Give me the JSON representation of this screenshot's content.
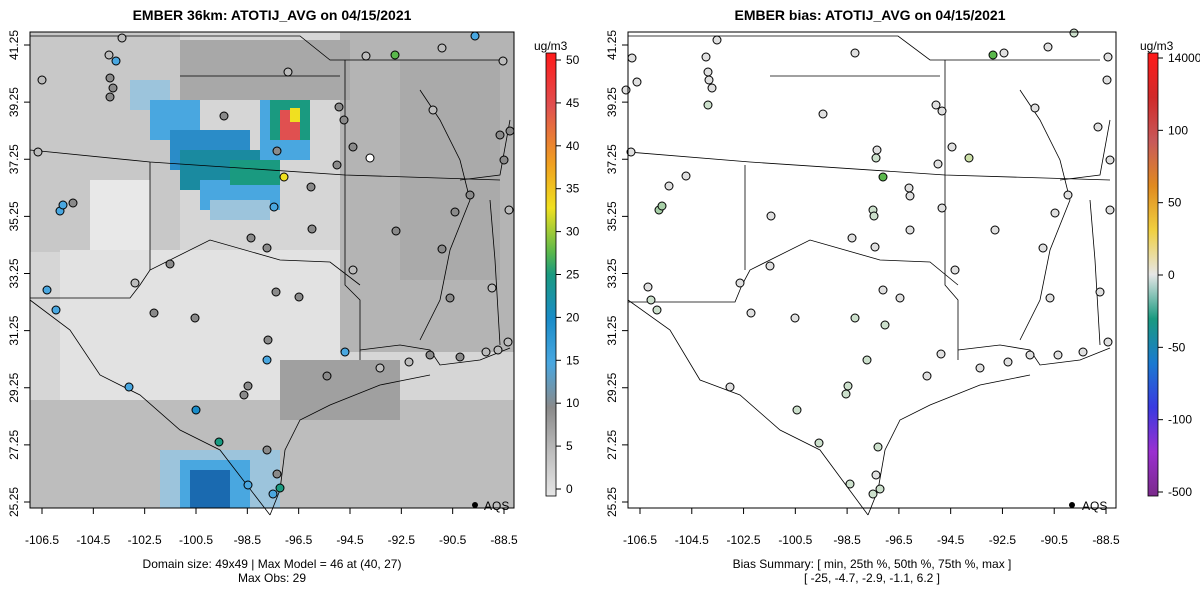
{
  "left_panel": {
    "title": "EMBER 36km: ATOTIJ_AVG on 04/15/2021",
    "units": "ug/m3",
    "colorbar_ticks": [
      "0",
      "5",
      "10",
      "15",
      "20",
      "25",
      "30",
      "35",
      "40",
      "45",
      "50"
    ],
    "footer_line1": "Domain size: 49x49 | Max Model = 46 at (40, 27)",
    "footer_line2": "Max Obs: 29",
    "legend_label": "AQS"
  },
  "right_panel": {
    "title": "EMBER bias: ATOTIJ_AVG on 04/15/2021",
    "units": "ug/m3",
    "colorbar_ticks": [
      "14000",
      "100",
      "50",
      "0",
      "-50",
      "-100",
      "-500"
    ],
    "footer_line1": "Bias Summary: [ min, 25th %, 50th %, 75th %, max ]",
    "footer_line2": "[ -25,   -4.7,   -2.9,   -1.1,   6.2 ]",
    "legend_label": "AQS"
  },
  "axes": {
    "x_ticks": [
      "-106.5",
      "-104.5",
      "-102.5",
      "-100.5",
      "-98.5",
      "-96.5",
      "-94.5",
      "-92.5",
      "-90.5",
      "-88.5"
    ],
    "y_ticks": [
      "25.25",
      "27.25",
      "29.25",
      "31.25",
      "33.25",
      "35.25",
      "37.25",
      "39.25",
      "41.25"
    ]
  },
  "colors": {
    "scale_low": "#e0e0e0",
    "scale_mid": "#9a9a9a",
    "scale_blue": "#49a7e0",
    "scale_teal": "#1a9a80",
    "scale_yellow": "#f0e020",
    "scale_red": "#ff1a1a"
  }
}
